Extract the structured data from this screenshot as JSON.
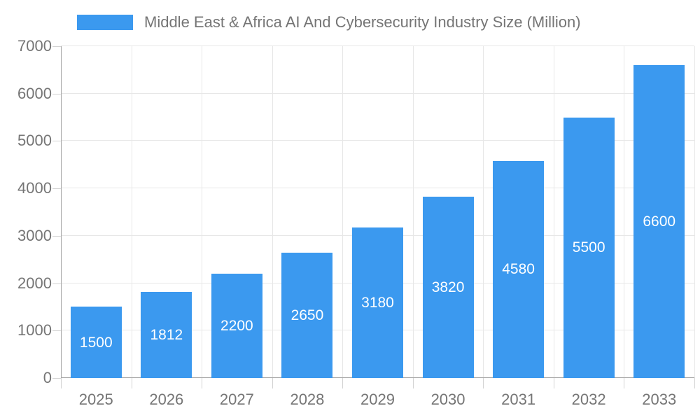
{
  "legend": {
    "label": "Middle East & Africa AI And Cybersecurity Industry Size (Million)"
  },
  "chart_data": {
    "type": "bar",
    "categories": [
      "2025",
      "2026",
      "2027",
      "2028",
      "2029",
      "2030",
      "2031",
      "2032",
      "2033"
    ],
    "values": [
      1500,
      1812,
      2200,
      2650,
      3180,
      3820,
      4580,
      5500,
      6600
    ],
    "title": "Middle East & Africa AI And Cybersecurity Industry Size (Million)",
    "xlabel": "",
    "ylabel": "",
    "ylim": [
      0,
      7000
    ],
    "yticks": [
      0,
      1000,
      2000,
      3000,
      4000,
      5000,
      6000,
      7000
    ],
    "grid": true,
    "legend_position": "top-left",
    "bar_value_labels": "inside-center"
  },
  "colors": {
    "bar": "#3B99EF",
    "value_label": "#FFFFFF",
    "axis_text": "#757575",
    "axis_line": "#A6A6A6",
    "gridline": "#E7E7E7",
    "tick": "#D2D2D2",
    "background": "#FFFFFF"
  }
}
